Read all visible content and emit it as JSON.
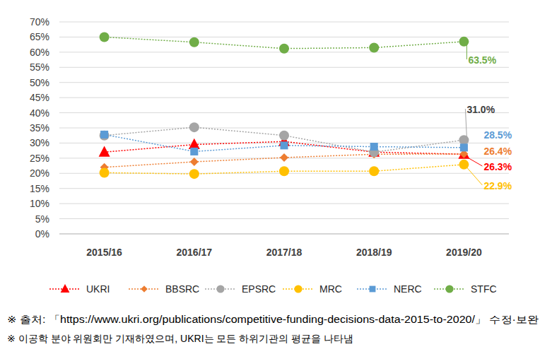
{
  "chart_data": {
    "type": "line",
    "categories": [
      "2015/16",
      "2016/17",
      "2017/18",
      "2018/19",
      "2019/20"
    ],
    "series": [
      {
        "name": "UKRI",
        "color": "#ff0000",
        "marker": "triangle",
        "line_style": "dotted",
        "values": [
          27.0,
          29.5,
          30.5,
          27.0,
          26.3
        ],
        "value_labels": [
          null,
          null,
          null,
          null,
          "26.3%"
        ]
      },
      {
        "name": "BBSRC",
        "color": "#ed7d31",
        "marker": "diamond",
        "line_style": "dotted",
        "values": [
          22.0,
          23.8,
          25.2,
          26.3,
          26.4
        ],
        "value_labels": [
          null,
          null,
          null,
          null,
          "26.4%"
        ]
      },
      {
        "name": "EPSRC",
        "color": "#a5a5a5",
        "marker": "circle",
        "line_style": "dotted",
        "values": [
          32.5,
          35.2,
          32.5,
          27.0,
          31.0
        ],
        "value_labels": [
          null,
          null,
          null,
          null,
          "31.0%"
        ]
      },
      {
        "name": "MRC",
        "color": "#ffc000",
        "marker": "circle",
        "line_style": "dotted",
        "values": [
          20.2,
          19.8,
          20.7,
          20.7,
          22.9
        ],
        "value_labels": [
          null,
          null,
          null,
          null,
          "22.9%"
        ]
      },
      {
        "name": "NERC",
        "color": "#5b9bd5",
        "marker": "square",
        "line_style": "dotted",
        "values": [
          32.8,
          27.2,
          29.2,
          28.8,
          28.5
        ],
        "value_labels": [
          null,
          null,
          null,
          null,
          "28.5%"
        ]
      },
      {
        "name": "STFC",
        "color": "#70ad47",
        "marker": "circle",
        "line_style": "dotted",
        "values": [
          65.0,
          63.3,
          61.2,
          61.5,
          63.5
        ],
        "value_labels": [
          null,
          null,
          null,
          null,
          "63.5%"
        ]
      }
    ],
    "ylim": [
      0,
      70
    ],
    "yticks": [
      {
        "value": 0,
        "label": "0%"
      },
      {
        "value": 5,
        "label": "5%"
      },
      {
        "value": 10,
        "label": "10%"
      },
      {
        "value": 15,
        "label": "15%"
      },
      {
        "value": 20,
        "label": "20%"
      },
      {
        "value": 25,
        "label": "25%"
      },
      {
        "value": 30,
        "label": "30%"
      },
      {
        "value": 35,
        "label": "35%"
      },
      {
        "value": 40,
        "label": "40%"
      },
      {
        "value": 45,
        "label": "45%"
      },
      {
        "value": 50,
        "label": "50%"
      },
      {
        "value": 55,
        "label": "55%"
      },
      {
        "value": 60,
        "label": "60%"
      },
      {
        "value": 65,
        "label": "65%"
      },
      {
        "value": 70,
        "label": "70%"
      }
    ],
    "grid": true,
    "legend": "bottom",
    "data_labels": true,
    "notes": [
      "※ 출처: 「https://www.ukri.org/publications/competitive-funding-decisions-data-2015-to-2020/」 수정·보완",
      "※ 이공학 분야 위원회만 기재하였으며, UKRI는 모든 하위기관의 평균을 나타냄"
    ]
  }
}
